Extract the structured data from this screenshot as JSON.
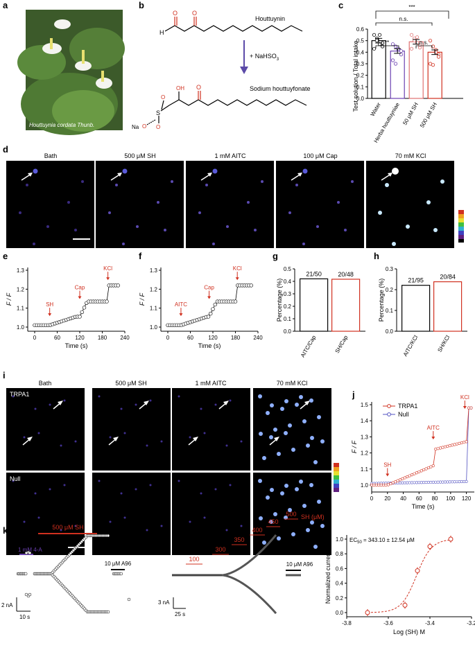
{
  "panels": {
    "a": {
      "label": "a",
      "caption": "Houttuynia cordata Thunb."
    },
    "b": {
      "label": "b",
      "top_name": "Houttuynin",
      "reagent": "+ NaHSO",
      "reagent_sub": "3",
      "bottom_name": "Sodium houttuyfonate",
      "na": "Na",
      "o": "O",
      "s": "S",
      "h": "H",
      "oh": "OH"
    },
    "c": {
      "label": "c",
      "ylabel": "Test solution / Total intake",
      "yticks": [
        "0.0",
        "0.1",
        "0.2",
        "0.3",
        "0.4",
        "0.5",
        "0.6"
      ],
      "categories": [
        "Water",
        "Herba houttuyniae",
        "50 μM SH",
        "500 μM SH"
      ],
      "sig": [
        "n.s.",
        "***",
        "**",
        "n.s."
      ]
    },
    "d": {
      "label": "d",
      "titles": [
        "Bath",
        "500 μM SH",
        "1 mM AITC",
        "100 μM Cap",
        "70 mM KCl"
      ]
    },
    "e": {
      "label": "e",
      "ylabel": "F / F",
      "ysub": "0",
      "xlabel": "Time (s)",
      "xticks": [
        "0",
        "60",
        "120",
        "180",
        "240"
      ],
      "yticks": [
        "1.0",
        "1.1",
        "1.2",
        "1.3"
      ],
      "arrows": [
        "SH",
        "Cap",
        "KCl"
      ]
    },
    "f": {
      "label": "f",
      "ylabel": "F / F",
      "ysub": "0",
      "xlabel": "Time (s)",
      "xticks": [
        "0",
        "60",
        "120",
        "180",
        "240"
      ],
      "yticks": [
        "1.0",
        "1.1",
        "1.2",
        "1.3"
      ],
      "arrows": [
        "AITC",
        "Cap",
        "KCl"
      ]
    },
    "g": {
      "label": "g",
      "ylabel": "Percentage (%)",
      "yticks": [
        "0.0",
        "0.1",
        "0.2",
        "0.3",
        "0.4",
        "0.5"
      ],
      "categories": [
        "AITC/Cap",
        "SH/Cap"
      ],
      "counts": [
        "21/50",
        "20/48"
      ]
    },
    "h": {
      "label": "h",
      "ylabel": "Percentage (%)",
      "yticks": [
        "0.0",
        "0.1",
        "0.2",
        "0.3"
      ],
      "categories": [
        "AITC/KCl",
        "SH/KCl"
      ],
      "counts": [
        "21/95",
        "20/84"
      ]
    },
    "i": {
      "label": "i",
      "titles": [
        "Bath",
        "500 μM SH",
        "1 mM AITC",
        "70 mM KCl"
      ],
      "rows": [
        "TRPA1",
        "Null"
      ]
    },
    "j": {
      "label": "j",
      "ylabel": "F / F",
      "ysub": "0",
      "xlabel": "Time (s)",
      "xticks": [
        "0",
        "20",
        "40",
        "60",
        "80",
        "100",
        "120"
      ],
      "yticks": [
        "1.0",
        "1.1",
        "1.2",
        "1.3",
        "1.4",
        "1.5"
      ],
      "legend": [
        "TRPA1",
        "Null"
      ],
      "arrows": [
        "SH",
        "AITC",
        "KCl"
      ]
    },
    "k": {
      "label": "k",
      "drug1": "1 mM 4-A",
      "drug2": "500 μM SH",
      "drug3": "10 μM A96",
      "scale_y": "2 nA",
      "scale_x": "10 s"
    },
    "l": {
      "label": "l",
      "concs": [
        "100",
        "300",
        "350",
        "400",
        "450",
        "500"
      ],
      "unit": "SH (μM)",
      "drug3": "10 μM A96",
      "scale_y": "3 nA",
      "scale_x": "25 s"
    },
    "m": {
      "label": "m",
      "ylabel": "Normalized currents",
      "xlabel": "Log (SH) M",
      "ec50": "EC",
      "ec50_sub": "50",
      "ec50_val": " = 343.10 ± 12.54 μM",
      "xticks": [
        "-3.8",
        "-3.6",
        "-3.4",
        "-3.2"
      ],
      "yticks": [
        "0.0",
        "0.2",
        "0.4",
        "0.6",
        "0.8",
        "1.0"
      ]
    }
  },
  "chart_data": [
    {
      "type": "bar",
      "panel": "c",
      "categories": [
        "Water",
        "Herba houttuyniae",
        "50 μM SH",
        "500 μM SH"
      ],
      "values": [
        0.5,
        0.41,
        0.49,
        0.4
      ],
      "ylim": [
        0,
        0.6
      ]
    },
    {
      "type": "bar",
      "panel": "g",
      "categories": [
        "AITC/Cap",
        "SH/Cap"
      ],
      "values": [
        0.42,
        0.417
      ],
      "ylim": [
        0,
        0.5
      ]
    },
    {
      "type": "bar",
      "panel": "h",
      "categories": [
        "AITC/KCl",
        "SH/KCl"
      ],
      "values": [
        0.221,
        0.238
      ],
      "ylim": [
        0,
        0.3
      ]
    },
    {
      "type": "line",
      "panel": "m",
      "x": [
        -3.7,
        -3.52,
        -3.46,
        -3.4,
        -3.3
      ],
      "y": [
        0.0,
        0.1,
        0.57,
        0.9,
        1.0
      ],
      "xlim": [
        -3.8,
        -3.2
      ],
      "ylim": [
        0,
        1.0
      ]
    }
  ]
}
